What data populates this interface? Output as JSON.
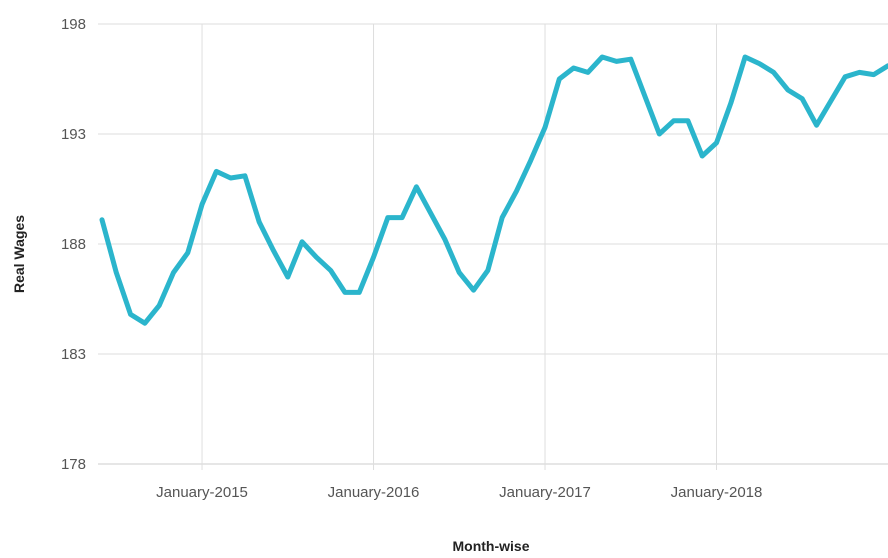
{
  "chart_data": {
    "type": "line",
    "title": "",
    "xlabel": "Month-wise",
    "ylabel": "Real Wages",
    "ylim": [
      178,
      198
    ],
    "yticks": [
      "178",
      "183",
      "188",
      "193",
      "198"
    ],
    "xticks": [
      {
        "label": "January-2015",
        "index": 7
      },
      {
        "label": "January-2016",
        "index": 19
      },
      {
        "label": "January-2017",
        "index": 31
      },
      {
        "label": "January-2018",
        "index": 43
      }
    ],
    "grid": true,
    "legend": "none",
    "color": "#2bb5cc",
    "series": [
      {
        "values": [
          189.1,
          186.7,
          184.8,
          184.4,
          185.2,
          186.7,
          187.6,
          189.8,
          191.3,
          191.0,
          191.1,
          189.0,
          187.7,
          186.5,
          188.1,
          187.4,
          186.8,
          185.8,
          185.8,
          187.4,
          189.2,
          189.2,
          190.6,
          189.4,
          188.2,
          186.7,
          185.9,
          186.8,
          189.2,
          190.4,
          191.8,
          193.3,
          195.5,
          196.0,
          195.8,
          196.5,
          196.3,
          196.4,
          194.7,
          193.0,
          193.6,
          193.6,
          192.0,
          192.6,
          194.4,
          196.5,
          196.2,
          195.8,
          195.0,
          194.6,
          193.4,
          194.5,
          195.6,
          195.8,
          195.7,
          196.1
        ]
      }
    ]
  }
}
